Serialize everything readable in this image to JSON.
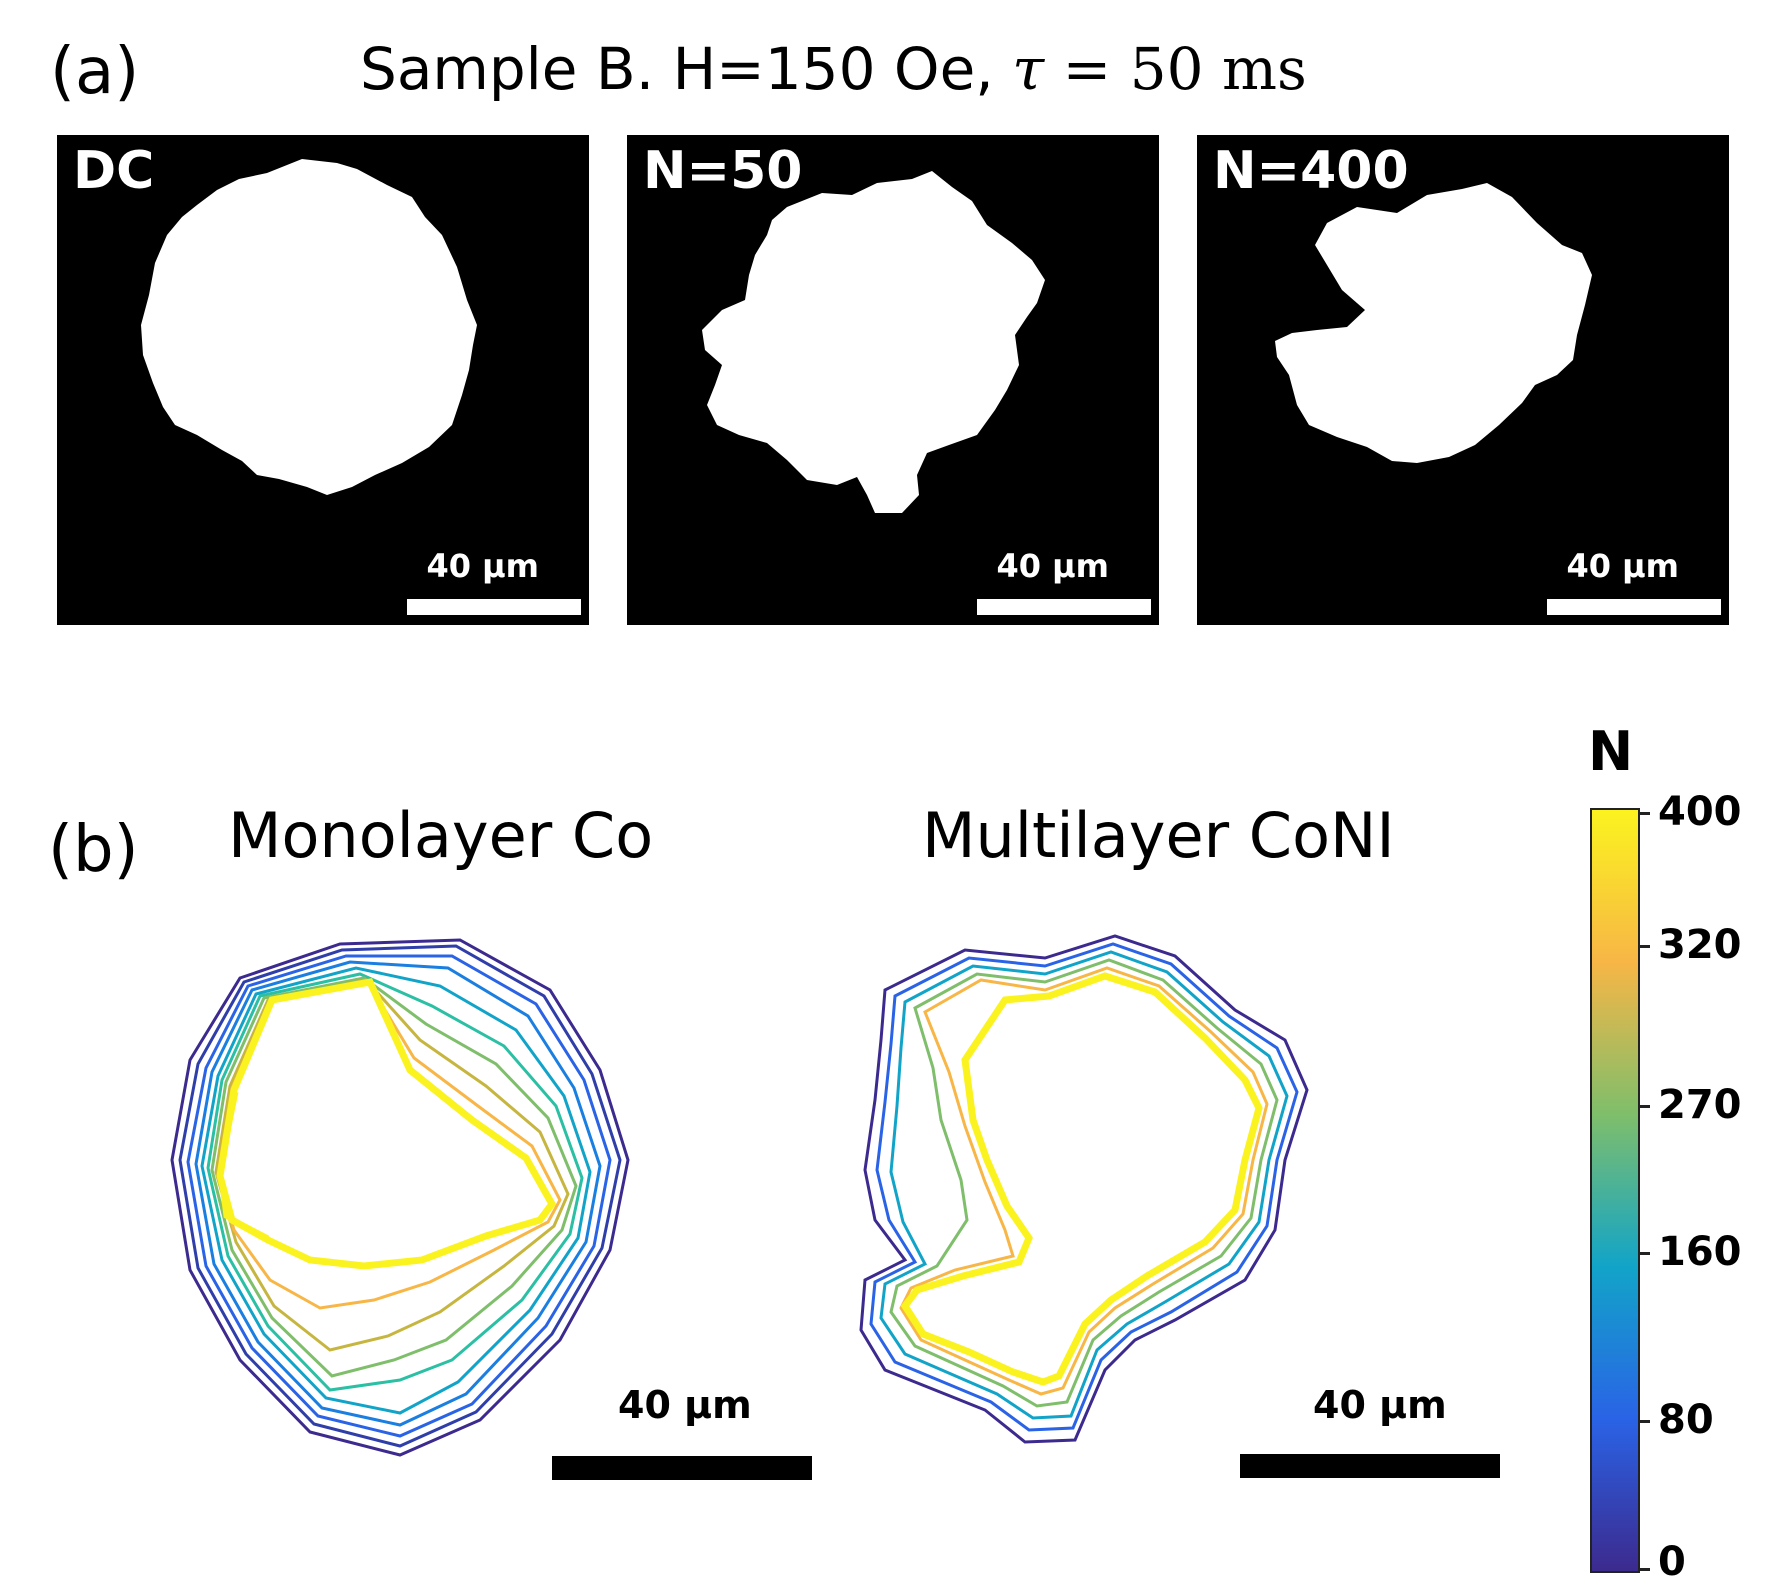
{
  "panel_a": {
    "label": "(a)",
    "title_prefix": "Sample B. H=150 Oe, ",
    "title_tau": "τ",
    "title_suffix": " = 50 ms",
    "panels": [
      {
        "tag": "DC",
        "scale_label": "40 μm"
      },
      {
        "tag": "N=50",
        "scale_label": "40 μm"
      },
      {
        "tag": "N=400",
        "scale_label": "40 μm"
      }
    ]
  },
  "panel_b": {
    "label": "(b)",
    "left_title": "Monolayer Co",
    "right_title": "Multilayer CoNI",
    "left_scale_label": "40 μm",
    "right_scale_label": "40 μm"
  },
  "colorbar": {
    "title": "N",
    "ticks": [
      "400",
      "320",
      "270",
      "160",
      "80",
      "0"
    ],
    "colors": [
      "#fbf31f",
      "#f7b646",
      "#7fbe6b",
      "#12a4c8",
      "#2a63e6",
      "#3c2a8e"
    ]
  }
}
